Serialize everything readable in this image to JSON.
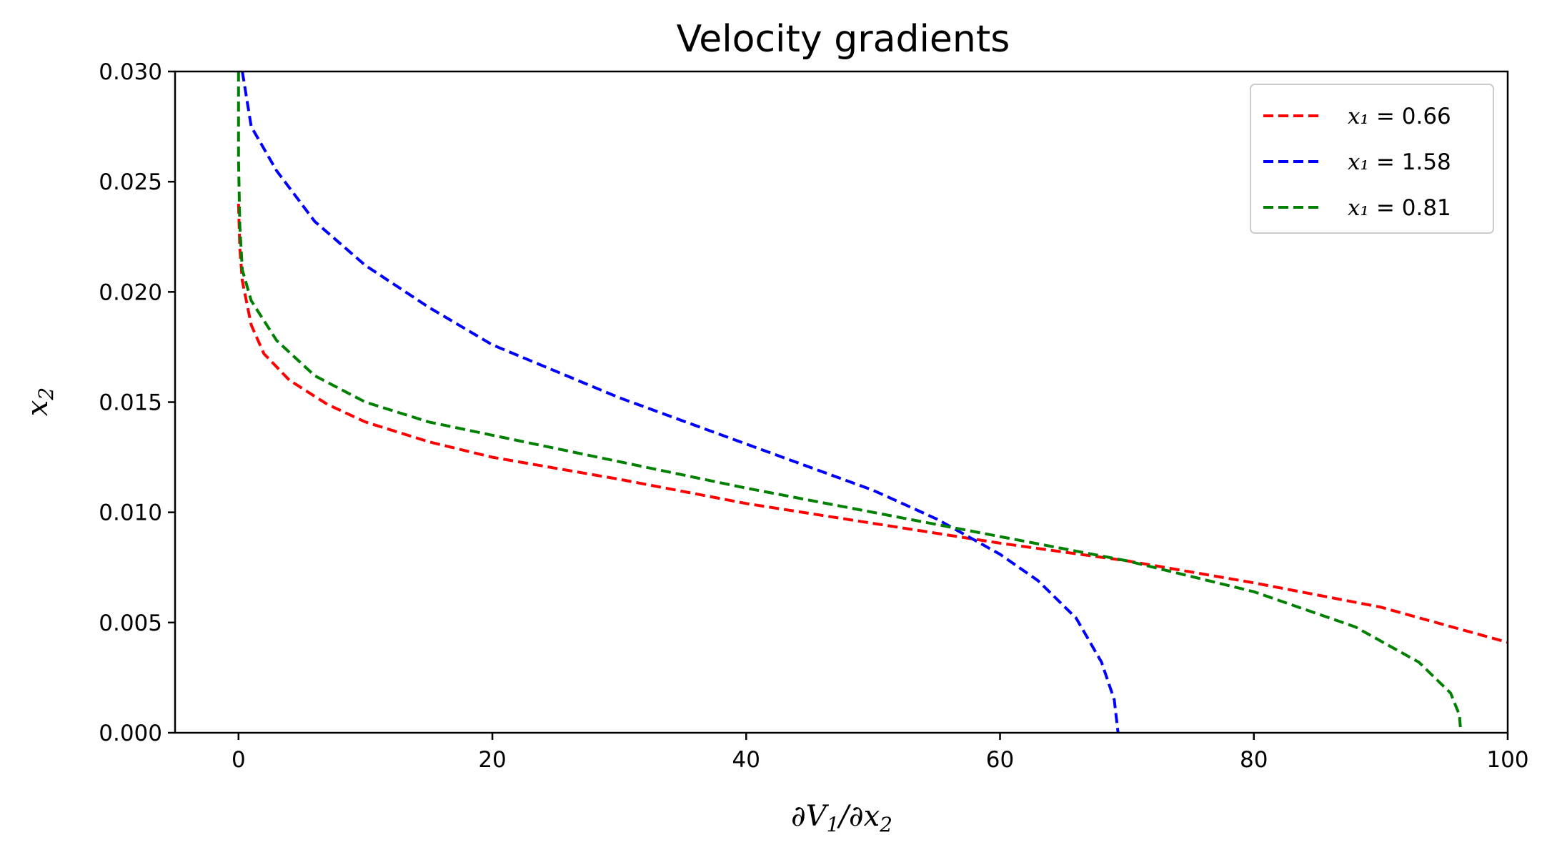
{
  "chart_data": {
    "type": "line",
    "title": "Velocity gradients",
    "xlabel": "∂V₁/∂x₂",
    "ylabel": "x₂",
    "xlim": [
      -5,
      100
    ],
    "ylim": [
      0,
      0.03
    ],
    "x_ticks": [
      0,
      20,
      40,
      60,
      80,
      100
    ],
    "x_tick_labels": [
      "0",
      "20",
      "40",
      "60",
      "80",
      "100"
    ],
    "y_ticks": [
      0.0,
      0.005,
      0.01,
      0.015,
      0.02,
      0.025,
      0.03
    ],
    "y_tick_labels": [
      "0.000",
      "0.005",
      "0.010",
      "0.015",
      "0.020",
      "0.025",
      "0.030"
    ],
    "grid": false,
    "legend": "top-right",
    "line_style": "dashed",
    "series": [
      {
        "name": "x₁ = 0.66",
        "legend_var": "x₁",
        "legend_value": "= 0.66",
        "color": "#ff0000",
        "points": [
          [
            0.0,
            0.024
          ],
          [
            0.1,
            0.022
          ],
          [
            0.3,
            0.0205
          ],
          [
            1,
            0.0185
          ],
          [
            2,
            0.0172
          ],
          [
            4,
            0.016
          ],
          [
            7,
            0.0149
          ],
          [
            10,
            0.0141
          ],
          [
            15,
            0.0132
          ],
          [
            20,
            0.0125
          ],
          [
            30,
            0.0115
          ],
          [
            40,
            0.0104
          ],
          [
            50,
            0.0095
          ],
          [
            60,
            0.0086
          ],
          [
            70,
            0.0078
          ],
          [
            80,
            0.0068
          ],
          [
            90,
            0.0057
          ],
          [
            100,
            0.0041
          ]
        ]
      },
      {
        "name": "x₁ = 1.58",
        "legend_var": "x₁",
        "legend_value": "= 1.58",
        "color": "#0000ff",
        "points": [
          [
            0.3,
            0.03
          ],
          [
            1,
            0.0275
          ],
          [
            3,
            0.0255
          ],
          [
            6,
            0.0232
          ],
          [
            10,
            0.0212
          ],
          [
            15,
            0.0193
          ],
          [
            20,
            0.0176
          ],
          [
            30,
            0.0152
          ],
          [
            40,
            0.0131
          ],
          [
            50,
            0.011
          ],
          [
            55,
            0.0097
          ],
          [
            60,
            0.0081
          ],
          [
            63,
            0.0069
          ],
          [
            66,
            0.0052
          ],
          [
            68,
            0.0032
          ],
          [
            69,
            0.0015
          ],
          [
            69.3,
            0.0
          ]
        ]
      },
      {
        "name": "x₁ = 0.81",
        "legend_var": "x₁",
        "legend_value": "= 0.81",
        "color": "#008000",
        "points": [
          [
            0.0,
            0.03
          ],
          [
            0.0,
            0.026
          ],
          [
            0.1,
            0.023
          ],
          [
            0.3,
            0.021
          ],
          [
            1,
            0.0196
          ],
          [
            3,
            0.0178
          ],
          [
            6,
            0.0162
          ],
          [
            10,
            0.015
          ],
          [
            15,
            0.0141
          ],
          [
            20,
            0.0135
          ],
          [
            30,
            0.0123
          ],
          [
            40,
            0.0111
          ],
          [
            50,
            0.01
          ],
          [
            60,
            0.0089
          ],
          [
            70,
            0.0078
          ],
          [
            80,
            0.0064
          ],
          [
            88,
            0.0048
          ],
          [
            93,
            0.0032
          ],
          [
            95.5,
            0.0018
          ],
          [
            96.2,
            0.0008
          ],
          [
            96.3,
            0.0
          ]
        ]
      }
    ]
  }
}
